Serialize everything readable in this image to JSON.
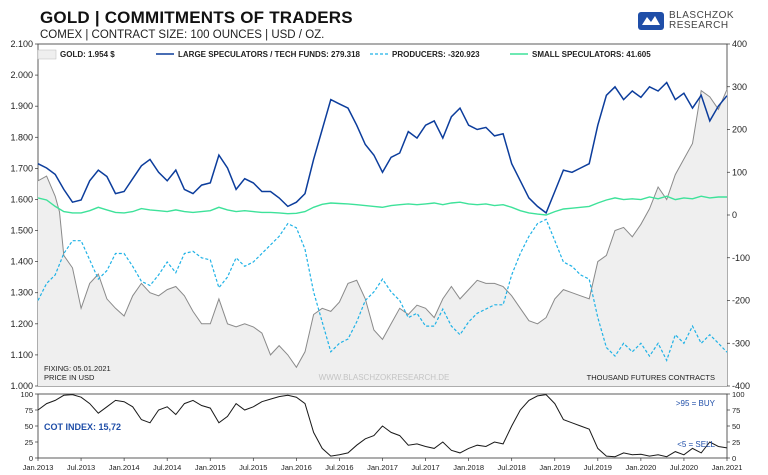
{
  "header": {
    "title": "GOLD | COMMITMENTS OF TRADERS",
    "subtitle": "COMEX | CONTRACT SIZE: 100 OUNCES | USD / OZ.",
    "logo_text_line1": "BLASCHZOK",
    "logo_text_line2": "RESEARCH"
  },
  "colors": {
    "gold": "#aaaaaa",
    "gold_fill": "#efefef",
    "large_specs": "#0c3d9c",
    "producers": "#1fb2e6",
    "small_specs": "#3ee29a",
    "cot": "#1a1a1a",
    "accent_text": "#1f4ea8"
  },
  "chart_data": [
    {
      "type": "line",
      "legend": [
        "GOLD: 1.954 $",
        "LARGE SPECULATORS / TECH FUNDS: 279.318",
        "PRODUCERS: -320.923",
        "SMALL SPECULATORS: 41.605"
      ],
      "left_axis": {
        "label": "USD",
        "ylim": [
          1000,
          2100
        ],
        "ticks": [
          "1.000",
          "1.100",
          "1.200",
          "1.300",
          "1.400",
          "1.500",
          "1.600",
          "1.700",
          "1.800",
          "1.900",
          "2.000",
          "2.100"
        ]
      },
      "right_axis": {
        "label": "THOUSAND FUTURES CONTRACTS",
        "ylim": [
          -400,
          400
        ],
        "ticks": [
          "-400",
          "-300",
          "-200",
          "-100",
          "0",
          "100",
          "200",
          "300",
          "400"
        ]
      },
      "x_ticks": [
        "Jan.2013",
        "Jul.2013",
        "Jan.2014",
        "Jul.2014",
        "Jan.2015",
        "Jul.2015",
        "Jan.2016",
        "Jul.2016",
        "Jan.2017",
        "Jul.2017",
        "Jan.2018",
        "Jul.2018",
        "Jan.2019",
        "Jul.2019",
        "Jan.2020",
        "Jul.2020",
        "Jan.2021"
      ],
      "x_range": [
        2013.0,
        2021.0
      ],
      "notes": [
        "FIXING: 05.01.2021",
        "PRICE IN USD"
      ],
      "watermark": "WWW.BLASCHZOKRESEARCH.DE",
      "unit_note": "THOUSAND FUTURES CONTRACTS",
      "series": [
        {
          "name": "GOLD: 1.954 $",
          "axis": "left",
          "x": [
            2013.0,
            2013.1,
            2013.2,
            2013.25,
            2013.3,
            2013.4,
            2013.5,
            2013.6,
            2013.7,
            2013.8,
            2013.9,
            2014.0,
            2014.1,
            2014.2,
            2014.3,
            2014.4,
            2014.5,
            2014.6,
            2014.7,
            2014.8,
            2014.9,
            2015.0,
            2015.1,
            2015.2,
            2015.3,
            2015.4,
            2015.5,
            2015.6,
            2015.7,
            2015.8,
            2015.9,
            2016.0,
            2016.1,
            2016.2,
            2016.3,
            2016.4,
            2016.5,
            2016.6,
            2016.7,
            2016.8,
            2016.9,
            2017.0,
            2017.1,
            2017.2,
            2017.3,
            2017.4,
            2017.5,
            2017.6,
            2017.7,
            2017.8,
            2017.9,
            2018.0,
            2018.1,
            2018.2,
            2018.3,
            2018.4,
            2018.5,
            2018.6,
            2018.7,
            2018.8,
            2018.9,
            2019.0,
            2019.1,
            2019.2,
            2019.3,
            2019.4,
            2019.5,
            2019.6,
            2019.7,
            2019.8,
            2019.9,
            2020.0,
            2020.1,
            2020.2,
            2020.3,
            2020.4,
            2020.5,
            2020.6,
            2020.7,
            2020.8,
            2020.9,
            2021.0
          ],
          "values": [
            1660,
            1675,
            1610,
            1560,
            1420,
            1380,
            1250,
            1330,
            1360,
            1280,
            1250,
            1225,
            1290,
            1330,
            1300,
            1290,
            1310,
            1320,
            1290,
            1240,
            1200,
            1200,
            1280,
            1200,
            1190,
            1200,
            1190,
            1170,
            1100,
            1130,
            1100,
            1060,
            1110,
            1230,
            1250,
            1240,
            1270,
            1330,
            1340,
            1280,
            1180,
            1150,
            1200,
            1250,
            1230,
            1260,
            1250,
            1220,
            1280,
            1320,
            1280,
            1310,
            1340,
            1330,
            1330,
            1320,
            1290,
            1250,
            1210,
            1200,
            1220,
            1280,
            1310,
            1300,
            1290,
            1280,
            1400,
            1420,
            1500,
            1510,
            1480,
            1520,
            1570,
            1640,
            1600,
            1680,
            1730,
            1780,
            1950,
            1930,
            1890,
            1954
          ]
        },
        {
          "name": "LARGE SPECULATORS / TECH FUNDS: 279.318",
          "axis": "right",
          "x": [
            2013.0,
            2013.1,
            2013.2,
            2013.3,
            2013.4,
            2013.5,
            2013.6,
            2013.7,
            2013.8,
            2013.9,
            2014.0,
            2014.1,
            2014.2,
            2014.3,
            2014.4,
            2014.5,
            2014.6,
            2014.7,
            2014.8,
            2014.9,
            2015.0,
            2015.1,
            2015.2,
            2015.3,
            2015.4,
            2015.5,
            2015.6,
            2015.7,
            2015.8,
            2015.9,
            2016.0,
            2016.1,
            2016.2,
            2016.3,
            2016.4,
            2016.5,
            2016.6,
            2016.7,
            2016.8,
            2016.9,
            2017.0,
            2017.1,
            2017.2,
            2017.3,
            2017.4,
            2017.5,
            2017.6,
            2017.7,
            2017.8,
            2017.9,
            2018.0,
            2018.1,
            2018.2,
            2018.3,
            2018.4,
            2018.5,
            2018.6,
            2018.7,
            2018.8,
            2018.9,
            2019.0,
            2019.1,
            2019.2,
            2019.3,
            2019.4,
            2019.5,
            2019.6,
            2019.7,
            2019.8,
            2019.9,
            2020.0,
            2020.1,
            2020.2,
            2020.3,
            2020.4,
            2020.5,
            2020.6,
            2020.7,
            2020.8,
            2020.9,
            2021.0
          ],
          "values": [
            120,
            110,
            95,
            60,
            30,
            35,
            80,
            105,
            90,
            50,
            55,
            85,
            115,
            130,
            100,
            80,
            105,
            60,
            50,
            70,
            75,
            140,
            110,
            60,
            85,
            75,
            55,
            55,
            40,
            20,
            30,
            50,
            130,
            200,
            270,
            260,
            250,
            210,
            165,
            140,
            100,
            135,
            145,
            195,
            180,
            210,
            220,
            180,
            230,
            250,
            210,
            200,
            205,
            185,
            190,
            120,
            80,
            40,
            20,
            5,
            55,
            105,
            100,
            110,
            120,
            210,
            280,
            300,
            270,
            290,
            275,
            300,
            290,
            310,
            270,
            285,
            250,
            280,
            220,
            255,
            279
          ]
        },
        {
          "name": "PRODUCERS: -320.923",
          "axis": "right",
          "x": [
            2013.0,
            2013.1,
            2013.2,
            2013.3,
            2013.4,
            2013.5,
            2013.6,
            2013.7,
            2013.8,
            2013.9,
            2014.0,
            2014.1,
            2014.2,
            2014.3,
            2014.4,
            2014.5,
            2014.6,
            2014.7,
            2014.8,
            2014.9,
            2015.0,
            2015.1,
            2015.2,
            2015.3,
            2015.4,
            2015.5,
            2015.6,
            2015.7,
            2015.8,
            2015.9,
            2016.0,
            2016.1,
            2016.2,
            2016.3,
            2016.4,
            2016.5,
            2016.6,
            2016.7,
            2016.8,
            2016.9,
            2017.0,
            2017.1,
            2017.2,
            2017.3,
            2017.4,
            2017.5,
            2017.6,
            2017.7,
            2017.8,
            2017.9,
            2018.0,
            2018.1,
            2018.2,
            2018.3,
            2018.4,
            2018.5,
            2018.6,
            2018.7,
            2018.8,
            2018.9,
            2019.0,
            2019.1,
            2019.2,
            2019.3,
            2019.4,
            2019.5,
            2019.6,
            2019.7,
            2019.8,
            2019.9,
            2020.0,
            2020.1,
            2020.2,
            2020.3,
            2020.4,
            2020.5,
            2020.6,
            2020.7,
            2020.8,
            2020.9,
            2021.0
          ],
          "values": [
            -200,
            -160,
            -140,
            -90,
            -60,
            -60,
            -105,
            -150,
            -130,
            -90,
            -90,
            -120,
            -155,
            -165,
            -140,
            -110,
            -135,
            -90,
            -85,
            -100,
            -105,
            -170,
            -145,
            -100,
            -120,
            -110,
            -90,
            -70,
            -50,
            -20,
            -30,
            -80,
            -180,
            -250,
            -320,
            -300,
            -290,
            -250,
            -200,
            -180,
            -150,
            -180,
            -200,
            -240,
            -230,
            -260,
            -260,
            -220,
            -260,
            -280,
            -250,
            -230,
            -220,
            -210,
            -210,
            -140,
            -90,
            -50,
            -20,
            -10,
            -60,
            -110,
            -120,
            -140,
            -150,
            -240,
            -310,
            -330,
            -300,
            -320,
            -300,
            -330,
            -300,
            -340,
            -280,
            -300,
            -260,
            -300,
            -280,
            -300,
            -321
          ]
        },
        {
          "name": "SMALL SPECULATORS: 41.605",
          "axis": "right",
          "x": [
            2013.0,
            2013.1,
            2013.2,
            2013.3,
            2013.4,
            2013.5,
            2013.6,
            2013.7,
            2013.8,
            2013.9,
            2014.0,
            2014.1,
            2014.2,
            2014.3,
            2014.4,
            2014.5,
            2014.6,
            2014.7,
            2014.8,
            2014.9,
            2015.0,
            2015.1,
            2015.2,
            2015.3,
            2015.4,
            2015.5,
            2015.6,
            2015.7,
            2015.8,
            2015.9,
            2016.0,
            2016.1,
            2016.2,
            2016.3,
            2016.4,
            2016.5,
            2016.6,
            2016.7,
            2016.8,
            2016.9,
            2017.0,
            2017.1,
            2017.2,
            2017.3,
            2017.4,
            2017.5,
            2017.6,
            2017.7,
            2017.8,
            2017.9,
            2018.0,
            2018.1,
            2018.2,
            2018.3,
            2018.4,
            2018.5,
            2018.6,
            2018.7,
            2018.8,
            2018.9,
            2019.0,
            2019.1,
            2019.2,
            2019.3,
            2019.4,
            2019.5,
            2019.6,
            2019.7,
            2019.8,
            2019.9,
            2020.0,
            2020.1,
            2020.2,
            2020.3,
            2020.4,
            2020.5,
            2020.6,
            2020.7,
            2020.8,
            2020.9,
            2021.0
          ],
          "values": [
            40,
            35,
            20,
            8,
            5,
            5,
            10,
            18,
            12,
            6,
            5,
            8,
            15,
            12,
            10,
            8,
            12,
            8,
            6,
            8,
            10,
            18,
            12,
            8,
            10,
            8,
            6,
            6,
            5,
            3,
            4,
            8,
            18,
            25,
            28,
            27,
            26,
            24,
            22,
            20,
            18,
            22,
            24,
            26,
            24,
            26,
            28,
            24,
            28,
            30,
            26,
            24,
            26,
            22,
            24,
            18,
            10,
            5,
            2,
            0,
            8,
            14,
            16,
            18,
            20,
            28,
            35,
            40,
            36,
            38,
            36,
            42,
            38,
            44,
            36,
            40,
            38,
            44,
            40,
            42,
            42
          ]
        }
      ]
    },
    {
      "type": "line",
      "title": "COT INDEX: 15,72",
      "ylim": [
        0,
        100
      ],
      "ticks": [
        "0",
        "25",
        "50",
        "75",
        "100"
      ],
      "annotations": [
        ">95 = BUY",
        "<5 = SELL"
      ],
      "series": [
        {
          "name": "COT INDEX: 15,72",
          "x": [
            2013.0,
            2013.1,
            2013.2,
            2013.3,
            2013.4,
            2013.5,
            2013.6,
            2013.7,
            2013.8,
            2013.9,
            2014.0,
            2014.1,
            2014.2,
            2014.3,
            2014.4,
            2014.5,
            2014.6,
            2014.7,
            2014.8,
            2014.9,
            2015.0,
            2015.1,
            2015.2,
            2015.3,
            2015.4,
            2015.5,
            2015.6,
            2015.7,
            2015.8,
            2015.9,
            2016.0,
            2016.1,
            2016.2,
            2016.3,
            2016.4,
            2016.5,
            2016.6,
            2016.7,
            2016.8,
            2016.9,
            2017.0,
            2017.1,
            2017.2,
            2017.3,
            2017.4,
            2017.5,
            2017.6,
            2017.7,
            2017.8,
            2017.9,
            2018.0,
            2018.1,
            2018.2,
            2018.3,
            2018.4,
            2018.5,
            2018.6,
            2018.7,
            2018.8,
            2018.9,
            2019.0,
            2019.1,
            2019.2,
            2019.3,
            2019.4,
            2019.5,
            2019.6,
            2019.7,
            2019.8,
            2019.9,
            2020.0,
            2020.1,
            2020.2,
            2020.3,
            2020.4,
            2020.5,
            2020.6,
            2020.7,
            2020.8,
            2020.9,
            2021.0
          ],
          "values": [
            75,
            85,
            90,
            98,
            99,
            95,
            85,
            70,
            80,
            90,
            88,
            80,
            60,
            55,
            75,
            80,
            68,
            85,
            90,
            82,
            78,
            55,
            65,
            85,
            75,
            80,
            88,
            92,
            96,
            98,
            95,
            85,
            40,
            15,
            3,
            5,
            8,
            20,
            30,
            35,
            50,
            40,
            35,
            20,
            22,
            18,
            15,
            25,
            12,
            8,
            15,
            20,
            18,
            25,
            22,
            50,
            75,
            90,
            97,
            99,
            85,
            60,
            55,
            50,
            45,
            15,
            3,
            2,
            8,
            5,
            6,
            3,
            5,
            2,
            10,
            5,
            15,
            8,
            25,
            18,
            15.72
          ]
        }
      ]
    }
  ]
}
